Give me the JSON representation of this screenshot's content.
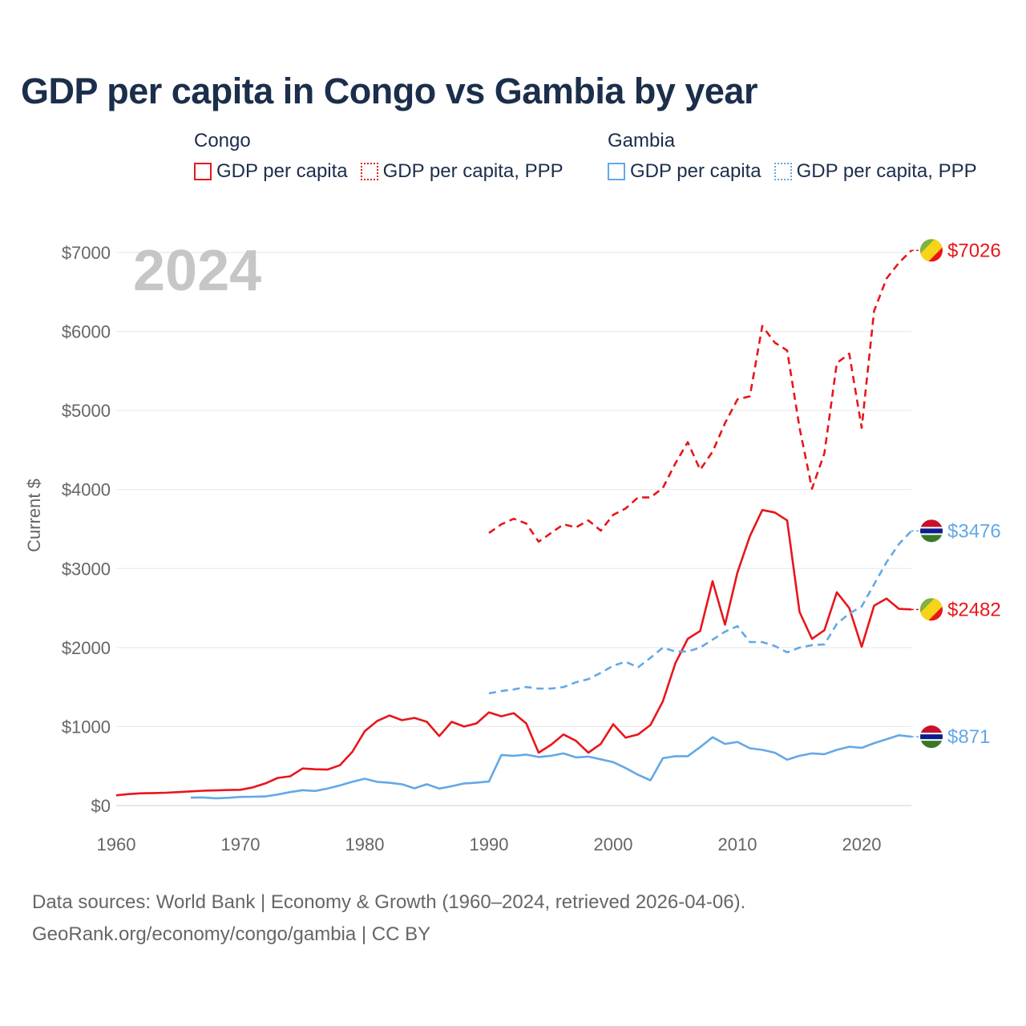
{
  "title": "GDP per capita in Congo vs Gambia by year",
  "legend": {
    "congo": {
      "name": "Congo",
      "nominal": "GDP per capita",
      "ppp": "GDP per capita, PPP"
    },
    "gambia": {
      "name": "Gambia",
      "nominal": "GDP per capita",
      "ppp": "GDP per capita, PPP"
    }
  },
  "year_overlay": "2024",
  "footer": {
    "line1": "Data sources: World Bank | Economy & Growth (1960–2024, retrieved 2026-04-06).",
    "line2": "GeoRank.org/economy/congo/gambia | CC BY"
  },
  "colors": {
    "congo": "#e8161b",
    "gambia": "#64a8e6",
    "grid": "#e6e6e6",
    "axis": "#666666"
  },
  "chart_data": {
    "type": "line",
    "title": "GDP per capita in Congo vs Gambia by year",
    "xlabel": "",
    "ylabel": "Current $",
    "xlim": [
      1960,
      2024
    ],
    "ylim": [
      0,
      7000
    ],
    "xticks": [
      1960,
      1970,
      1980,
      1990,
      2000,
      2010,
      2020
    ],
    "yticks": [
      0,
      1000,
      2000,
      3000,
      4000,
      5000,
      6000,
      7000
    ],
    "ytick_labels": [
      "$0",
      "$1000",
      "$2000",
      "$3000",
      "$4000",
      "$5000",
      "$6000",
      "$7000"
    ],
    "series": [
      {
        "name": "Congo GDP per capita",
        "country": "congo",
        "style": "solid",
        "end_label": "$2482",
        "x": [
          1960,
          1961,
          1962,
          1963,
          1964,
          1965,
          1966,
          1967,
          1968,
          1969,
          1970,
          1971,
          1972,
          1973,
          1974,
          1975,
          1976,
          1977,
          1978,
          1979,
          1980,
          1981,
          1982,
          1983,
          1984,
          1985,
          1986,
          1987,
          1988,
          1989,
          1990,
          1991,
          1992,
          1993,
          1994,
          1995,
          1996,
          1997,
          1998,
          1999,
          2000,
          2001,
          2002,
          2003,
          2004,
          2005,
          2006,
          2007,
          2008,
          2009,
          2010,
          2011,
          2012,
          2013,
          2014,
          2015,
          2016,
          2017,
          2018,
          2019,
          2020,
          2021,
          2022,
          2023,
          2024
        ],
        "values": [
          130,
          145,
          155,
          158,
          162,
          170,
          180,
          188,
          192,
          197,
          200,
          230,
          280,
          350,
          370,
          470,
          460,
          455,
          510,
          680,
          940,
          1070,
          1140,
          1080,
          1110,
          1060,
          880,
          1060,
          1000,
          1040,
          1180,
          1130,
          1170,
          1040,
          670,
          770,
          900,
          820,
          670,
          780,
          1030,
          860,
          900,
          1020,
          1320,
          1800,
          2110,
          2210,
          2840,
          2290,
          2950,
          3410,
          3740,
          3710,
          3610,
          2450,
          2110,
          2220,
          2700,
          2500,
          2010,
          2530,
          2620,
          2490,
          2482
        ]
      },
      {
        "name": "Congo GDP per capita, PPP",
        "country": "congo",
        "style": "dashed",
        "end_label": "$7026",
        "x": [
          1990,
          1991,
          1992,
          1993,
          1994,
          1995,
          1996,
          1997,
          1998,
          1999,
          2000,
          2001,
          2002,
          2003,
          2004,
          2005,
          2006,
          2007,
          2008,
          2009,
          2010,
          2011,
          2012,
          2013,
          2014,
          2015,
          2016,
          2017,
          2018,
          2019,
          2020,
          2021,
          2022,
          2023,
          2024
        ],
        "values": [
          3450,
          3560,
          3630,
          3570,
          3340,
          3450,
          3560,
          3520,
          3610,
          3480,
          3680,
          3760,
          3900,
          3900,
          4020,
          4330,
          4600,
          4250,
          4480,
          4840,
          5140,
          5180,
          6070,
          5860,
          5760,
          4780,
          4010,
          4460,
          5600,
          5720,
          4780,
          6260,
          6670,
          6870,
          7026
        ]
      },
      {
        "name": "Gambia GDP per capita",
        "country": "gambia",
        "style": "solid",
        "end_label": "$871",
        "x": [
          1966,
          1967,
          1968,
          1969,
          1970,
          1971,
          1972,
          1973,
          1974,
          1975,
          1976,
          1977,
          1978,
          1979,
          1980,
          1981,
          1982,
          1983,
          1984,
          1985,
          1986,
          1987,
          1988,
          1989,
          1990,
          1991,
          1992,
          1993,
          1994,
          1995,
          1996,
          1997,
          1998,
          1999,
          2000,
          2001,
          2002,
          2003,
          2004,
          2005,
          2006,
          2007,
          2008,
          2009,
          2010,
          2011,
          2012,
          2013,
          2014,
          2015,
          2016,
          2017,
          2018,
          2019,
          2020,
          2021,
          2022,
          2023,
          2024
        ],
        "values": [
          100,
          102,
          92,
          98,
          110,
          112,
          116,
          140,
          170,
          195,
          185,
          215,
          255,
          300,
          340,
          300,
          288,
          270,
          218,
          270,
          215,
          245,
          280,
          290,
          305,
          640,
          630,
          645,
          615,
          630,
          660,
          610,
          620,
          585,
          550,
          475,
          390,
          320,
          600,
          625,
          625,
          740,
          865,
          780,
          805,
          725,
          705,
          670,
          580,
          630,
          660,
          650,
          705,
          745,
          730,
          790,
          840,
          890,
          871
        ]
      },
      {
        "name": "Gambia GDP per capita, PPP",
        "country": "gambia",
        "style": "dashed",
        "end_label": "$3476",
        "x": [
          1990,
          1991,
          1992,
          1993,
          1994,
          1995,
          1996,
          1997,
          1998,
          1999,
          2000,
          2001,
          2002,
          2003,
          2004,
          2005,
          2006,
          2007,
          2008,
          2009,
          2010,
          2011,
          2012,
          2013,
          2014,
          2015,
          2016,
          2017,
          2018,
          2019,
          2020,
          2021,
          2022,
          2023,
          2024
        ],
        "values": [
          1420,
          1450,
          1470,
          1500,
          1480,
          1480,
          1500,
          1560,
          1600,
          1680,
          1770,
          1820,
          1750,
          1870,
          2000,
          1950,
          1950,
          2000,
          2100,
          2200,
          2270,
          2070,
          2070,
          2020,
          1940,
          2000,
          2030,
          2040,
          2300,
          2430,
          2520,
          2800,
          3080,
          3310,
          3476
        ]
      }
    ]
  }
}
